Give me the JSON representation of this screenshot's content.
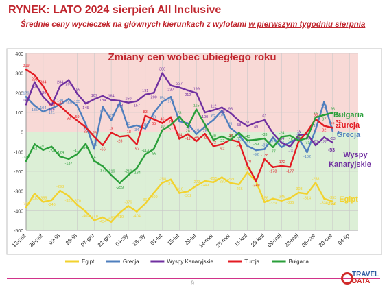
{
  "header": {
    "title": "RYNEK: LATO 2024 sierpień All Inclusive",
    "subtitle_a": "Średnie ceny wycieczek na głównych kierunkach z wylotami ",
    "subtitle_b": "w pierwszym tygodniu sierpnia"
  },
  "footer": {
    "page": "9",
    "logo_top": "TRAVEL",
    "logo_bottom": "DATA"
  },
  "colors": {
    "Egipt": "#f2d22e",
    "Grecja": "#4f7fbe",
    "Wyspy Kanaryjskie": "#7030a0",
    "Turcja": "#e31b23",
    "Bułgaria": "#2a9f3a"
  },
  "chart_data": {
    "type": "line",
    "title": "Zmiany cen wobec ubiegłego roku",
    "ylim": [
      -500,
      400
    ],
    "yticks": [
      400,
      300,
      200,
      100,
      0,
      -100,
      -200,
      -300,
      -400,
      -500
    ],
    "xtick_labels": [
      "12-paź",
      "26-paź",
      "09-lis",
      "23-lis",
      "07-gru",
      "21-gru",
      "04-sty",
      "18-sty",
      "01-lut",
      "15-lut",
      "29-lut",
      "14-mar",
      "28-mar",
      "11-kwi",
      "25-kwi",
      "09-maj",
      "23-maj",
      "06-cze",
      "20-cze",
      "04-lip"
    ],
    "background_bands": [
      {
        "from": 0,
        "to": 400,
        "color": "#f8d9d6"
      },
      {
        "from": -500,
        "to": 0,
        "color": "#dcefd6"
      }
    ],
    "legend_position": "bottom",
    "series_labels": [
      {
        "name": "Bułgaria",
        "text": "Bułgaria"
      },
      {
        "name": "Turcja",
        "text": "Turcja"
      },
      {
        "name": "Grecja",
        "text": "Grecja"
      },
      {
        "name": "Wyspy Kanaryjskie",
        "text": "Wyspy Kanaryjskie"
      },
      {
        "name": "Egipt",
        "text": "Egipt"
      }
    ],
    "series": [
      {
        "name": "Egipt",
        "values": [
          -383,
          -313,
          -355,
          -346,
          -298,
          -325,
          -370,
          -404,
          -449,
          -434,
          -457,
          -410,
          -376,
          -404,
          -364,
          -309,
          -258,
          -241,
          -310,
          -302,
          -273,
          -249,
          -255,
          -230,
          -259,
          -266,
          -205,
          -251,
          -356,
          -339,
          -349,
          -336,
          -308,
          -314,
          -258,
          -338,
          -353
        ]
      },
      {
        "name": "Grecja",
        "values": [
          179,
          135,
          104,
          121,
          140,
          169,
          135,
          41,
          -85,
          128,
          61,
          150,
          23,
          34,
          18,
          98,
          154,
          179,
          55,
          45,
          -10,
          28,
          62,
          109,
          21,
          -13,
          -71,
          -92,
          -87,
          -28,
          -77,
          -51,
          -30,
          -102,
          12,
          154,
          4
        ]
      },
      {
        "name": "Wyspy Kanaryjskie",
        "values": [
          141,
          254,
          180,
          136,
          234,
          265,
          196,
          145,
          167,
          184,
          164,
          159,
          150,
          157,
          191,
          200,
          300,
          237,
          227,
          212,
          199,
          100,
          112,
          125,
          98,
          58,
          31,
          49,
          61,
          -6,
          -54,
          -73,
          -16,
          -10,
          -67,
          -27,
          -53
        ]
      },
      {
        "name": "Turcja",
        "values": [
          319,
          290,
          234,
          160,
          132,
          92,
          59,
          25,
          -23,
          -66,
          -3,
          -23,
          -18,
          -63,
          83,
          65,
          46,
          76,
          -34,
          -11,
          -46,
          -9,
          -72,
          -62,
          -39,
          -50,
          -170,
          -249,
          -138,
          -178,
          -172,
          -177,
          -49,
          1,
          66,
          32,
          22
        ]
      },
      {
        "name": "Bułgaria",
        "values": [
          -147,
          -62,
          -91,
          -74,
          -124,
          -137,
          -112,
          -60,
          -147,
          -173,
          -219,
          -259,
          -219,
          -184,
          -113,
          -86,
          10,
          37,
          78,
          28,
          115,
          39,
          -40,
          -22,
          -41,
          -4,
          -43,
          -39,
          -33,
          -77,
          -24,
          -18,
          -43,
          -31,
          75,
          87,
          98
        ]
      }
    ],
    "end_value_labels": [
      {
        "name": "Bułgaria",
        "text": "98"
      },
      {
        "name": "Turcja",
        "text": "32"
      },
      {
        "name": "Turcja",
        "text": "22"
      },
      {
        "name": "Grecja",
        "text": "4"
      },
      {
        "name": "Wyspy Kanaryjskie",
        "text": "-53"
      },
      {
        "name": "Egipt",
        "text": "-353"
      }
    ]
  }
}
